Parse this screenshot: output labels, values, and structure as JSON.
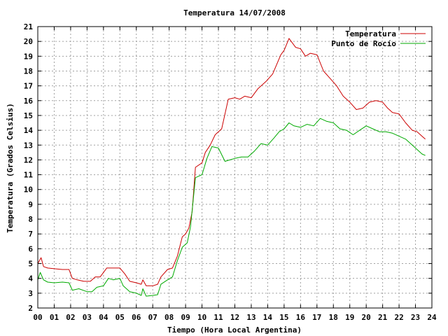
{
  "chart_data": {
    "type": "line",
    "title": "Temperatura 14/07/2008",
    "xlabel": "Tiempo (Hora Local Argentina)",
    "ylabel": "Temperatura (Grados Celsius)",
    "xlim": [
      0,
      24
    ],
    "ylim": [
      2,
      21
    ],
    "x_ticks": [
      "00",
      "01",
      "02",
      "03",
      "04",
      "05",
      "06",
      "07",
      "08",
      "09",
      "10",
      "11",
      "12",
      "13",
      "14",
      "15",
      "16",
      "17",
      "18",
      "19",
      "20",
      "21",
      "22",
      "23",
      "24"
    ],
    "y_ticks": [
      2,
      3,
      4,
      5,
      6,
      7,
      8,
      9,
      10,
      11,
      12,
      13,
      14,
      15,
      16,
      17,
      18,
      19,
      20,
      21
    ],
    "grid": true,
    "legend_position": "top-right",
    "colors": {
      "Temperatura": "#cc0000",
      "Punto de Rocío": "#00aa00",
      "grid": "#a0a0a0",
      "frame": "#000000"
    },
    "series": [
      {
        "name": "Temperatura",
        "x": [
          0.0,
          0.2,
          0.35,
          0.6,
          1.0,
          1.5,
          1.9,
          2.1,
          2.4,
          2.8,
          3.2,
          3.5,
          3.8,
          4.2,
          4.6,
          5.0,
          5.3,
          5.6,
          6.0,
          6.3,
          6.4,
          6.6,
          7.0,
          7.3,
          7.5,
          7.9,
          8.2,
          8.5,
          8.8,
          9.0,
          9.2,
          9.4,
          9.6,
          10.0,
          10.2,
          10.5,
          10.8,
          11.2,
          11.6,
          12.0,
          12.3,
          12.6,
          13.0,
          13.4,
          13.9,
          14.3,
          14.8,
          15.0,
          15.3,
          15.7,
          16.0,
          16.3,
          16.6,
          17.0,
          17.4,
          17.8,
          18.2,
          18.6,
          19.0,
          19.4,
          19.8,
          20.2,
          20.6,
          21.0,
          21.3,
          21.6,
          22.0,
          22.4,
          22.8,
          23.1,
          23.4,
          23.6
        ],
        "values": [
          5.0,
          5.4,
          4.8,
          4.7,
          4.65,
          4.6,
          4.6,
          4.0,
          3.9,
          3.8,
          3.8,
          4.1,
          4.1,
          4.7,
          4.7,
          4.7,
          4.3,
          3.8,
          3.7,
          3.6,
          3.9,
          3.5,
          3.5,
          3.6,
          4.1,
          4.6,
          4.7,
          5.5,
          6.8,
          7.0,
          7.4,
          8.5,
          11.5,
          11.8,
          12.5,
          13.0,
          13.7,
          14.1,
          16.1,
          16.2,
          16.1,
          16.3,
          16.2,
          16.8,
          17.3,
          17.8,
          19.1,
          19.4,
          20.2,
          19.6,
          19.5,
          19.0,
          19.2,
          19.1,
          18.0,
          17.5,
          17.0,
          16.3,
          15.9,
          15.4,
          15.5,
          15.9,
          16.0,
          15.9,
          15.5,
          15.2,
          15.1,
          14.5,
          14.0,
          13.9,
          13.6,
          13.4
        ]
      },
      {
        "name": "Punto de Rocío",
        "x": [
          0.0,
          0.15,
          0.35,
          0.6,
          1.0,
          1.5,
          1.9,
          2.1,
          2.5,
          3.0,
          3.3,
          3.6,
          4.0,
          4.3,
          4.6,
          5.0,
          5.2,
          5.6,
          6.0,
          6.3,
          6.4,
          6.6,
          7.0,
          7.3,
          7.5,
          7.9,
          8.2,
          8.5,
          8.8,
          9.1,
          9.3,
          9.6,
          10.0,
          10.3,
          10.6,
          11.0,
          11.4,
          11.7,
          12.0,
          12.4,
          12.8,
          13.2,
          13.6,
          14.0,
          14.4,
          14.7,
          15.0,
          15.3,
          15.6,
          16.0,
          16.4,
          16.8,
          17.2,
          17.6,
          18.0,
          18.4,
          18.8,
          19.2,
          19.6,
          20.0,
          20.4,
          20.8,
          21.2,
          21.6,
          22.0,
          22.4,
          22.8,
          23.1,
          23.4,
          23.6
        ],
        "values": [
          3.9,
          4.4,
          3.9,
          3.75,
          3.7,
          3.75,
          3.7,
          3.2,
          3.3,
          3.1,
          3.1,
          3.4,
          3.5,
          4.0,
          3.9,
          4.0,
          3.5,
          3.1,
          3.0,
          2.85,
          3.3,
          2.8,
          2.85,
          2.9,
          3.6,
          3.9,
          4.1,
          5.2,
          6.1,
          6.4,
          7.5,
          10.8,
          11.0,
          12.1,
          12.9,
          12.8,
          11.9,
          12.0,
          12.1,
          12.2,
          12.2,
          12.6,
          13.1,
          13.0,
          13.5,
          13.9,
          14.1,
          14.5,
          14.3,
          14.2,
          14.4,
          14.3,
          14.8,
          14.6,
          14.5,
          14.1,
          14.0,
          13.7,
          14.0,
          14.3,
          14.1,
          13.9,
          13.9,
          13.8,
          13.6,
          13.4,
          13.0,
          12.7,
          12.4,
          12.3
        ]
      }
    ]
  }
}
